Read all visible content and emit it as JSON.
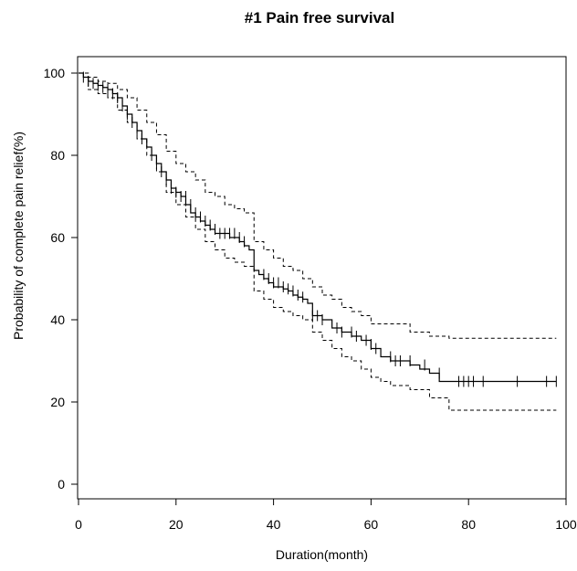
{
  "chart_data": {
    "type": "line",
    "title": "#1 Pain free survival",
    "xlabel": "Duration(month)",
    "ylabel": "Probability of complete pain relief(%)",
    "xlim": [
      0,
      100
    ],
    "ylim": [
      0,
      100
    ],
    "xticks": [
      0,
      20,
      40,
      60,
      80,
      100
    ],
    "yticks": [
      0,
      20,
      40,
      60,
      80,
      100
    ],
    "grid": false,
    "series": [
      {
        "role": "estimate",
        "style": "solid",
        "step": true,
        "x": [
          0,
          1,
          2,
          3,
          4,
          5,
          6,
          7,
          8,
          9,
          10,
          11,
          12,
          13,
          14,
          15,
          16,
          17,
          18,
          19,
          20,
          21,
          22,
          23,
          24,
          25,
          26,
          27,
          28,
          29,
          30,
          31,
          32,
          33,
          34,
          35,
          36,
          37,
          38,
          39,
          40,
          41,
          42,
          43,
          44,
          45,
          46,
          47,
          48,
          50,
          52,
          54,
          56,
          58,
          60,
          62,
          64,
          66,
          68,
          70,
          72,
          74,
          76,
          78,
          80,
          83,
          90,
          96,
          98
        ],
        "y": [
          100,
          99,
          98,
          97.5,
          97,
          96.5,
          96,
          95,
          94,
          92,
          90,
          88,
          86,
          84,
          82,
          80,
          78,
          76,
          74,
          72,
          71,
          70,
          68,
          66,
          65,
          64,
          63,
          62,
          61,
          61,
          61,
          60,
          60,
          59,
          58,
          57,
          52,
          51,
          50,
          49,
          48,
          48,
          47.5,
          47,
          46,
          45.5,
          45,
          44,
          41,
          40,
          38,
          37,
          36,
          35,
          33,
          31,
          30,
          30,
          29,
          28,
          27,
          25,
          25,
          25,
          25,
          25,
          25,
          25,
          25
        ]
      },
      {
        "role": "upper-ci",
        "style": "dashed",
        "step": true,
        "x": [
          0,
          2,
          4,
          6,
          8,
          10,
          12,
          14,
          16,
          18,
          20,
          22,
          24,
          26,
          28,
          30,
          32,
          34,
          36,
          38,
          40,
          42,
          44,
          46,
          48,
          50,
          52,
          54,
          56,
          58,
          60,
          62,
          64,
          68,
          72,
          76,
          98
        ],
        "y": [
          100,
          99,
          98,
          97.5,
          96,
          94,
          91,
          88,
          85,
          81,
          78,
          76,
          74,
          71,
          70,
          68,
          67,
          66,
          59,
          57,
          55,
          53,
          52,
          50,
          48,
          46,
          45,
          43,
          42,
          41,
          39,
          39,
          39,
          37,
          36,
          35.5,
          35.5
        ]
      },
      {
        "role": "lower-ci",
        "style": "dashed",
        "step": true,
        "x": [
          0,
          2,
          4,
          6,
          8,
          10,
          12,
          14,
          16,
          18,
          20,
          22,
          24,
          26,
          28,
          30,
          32,
          34,
          36,
          38,
          40,
          42,
          44,
          46,
          48,
          50,
          52,
          54,
          56,
          58,
          60,
          62,
          64,
          68,
          72,
          76,
          98
        ],
        "y": [
          100,
          96,
          95,
          94,
          91,
          88,
          84,
          80,
          76,
          71,
          68,
          65,
          62,
          59,
          57,
          55,
          54,
          53,
          47,
          45,
          43,
          42,
          41,
          40,
          37,
          35,
          33,
          31,
          30,
          28,
          26,
          25,
          24,
          23,
          21,
          18,
          18
        ]
      }
    ],
    "censor_marks": {
      "style": "plus",
      "x": [
        1,
        2,
        3,
        4,
        5,
        6,
        7,
        8,
        9,
        10,
        11,
        12,
        13,
        15,
        16,
        17,
        18,
        19,
        20,
        21,
        22,
        23,
        24,
        25,
        26,
        27,
        28,
        29,
        30,
        31,
        32,
        33,
        34,
        38,
        39,
        40,
        41,
        42,
        43,
        44,
        45,
        46,
        48,
        49,
        50,
        53,
        54,
        56,
        57,
        59,
        60,
        61,
        64,
        65,
        66,
        68,
        71,
        74,
        78,
        79,
        80,
        81,
        83,
        90,
        96,
        98
      ],
      "y": [
        99,
        98,
        97.5,
        97,
        96.5,
        96,
        95,
        94,
        92,
        90,
        88,
        86,
        84,
        80,
        78,
        76,
        74,
        72,
        71,
        70,
        70,
        68,
        66,
        65,
        64,
        63,
        62,
        61,
        61,
        61,
        61,
        60,
        59,
        51,
        50,
        49,
        49,
        48,
        47.5,
        47,
        46,
        45.5,
        41,
        41,
        40,
        38,
        37,
        37,
        36,
        35,
        34,
        33,
        31,
        30,
        30,
        30,
        29,
        27,
        25,
        25,
        25,
        25,
        25,
        25,
        25,
        25
      ]
    }
  }
}
